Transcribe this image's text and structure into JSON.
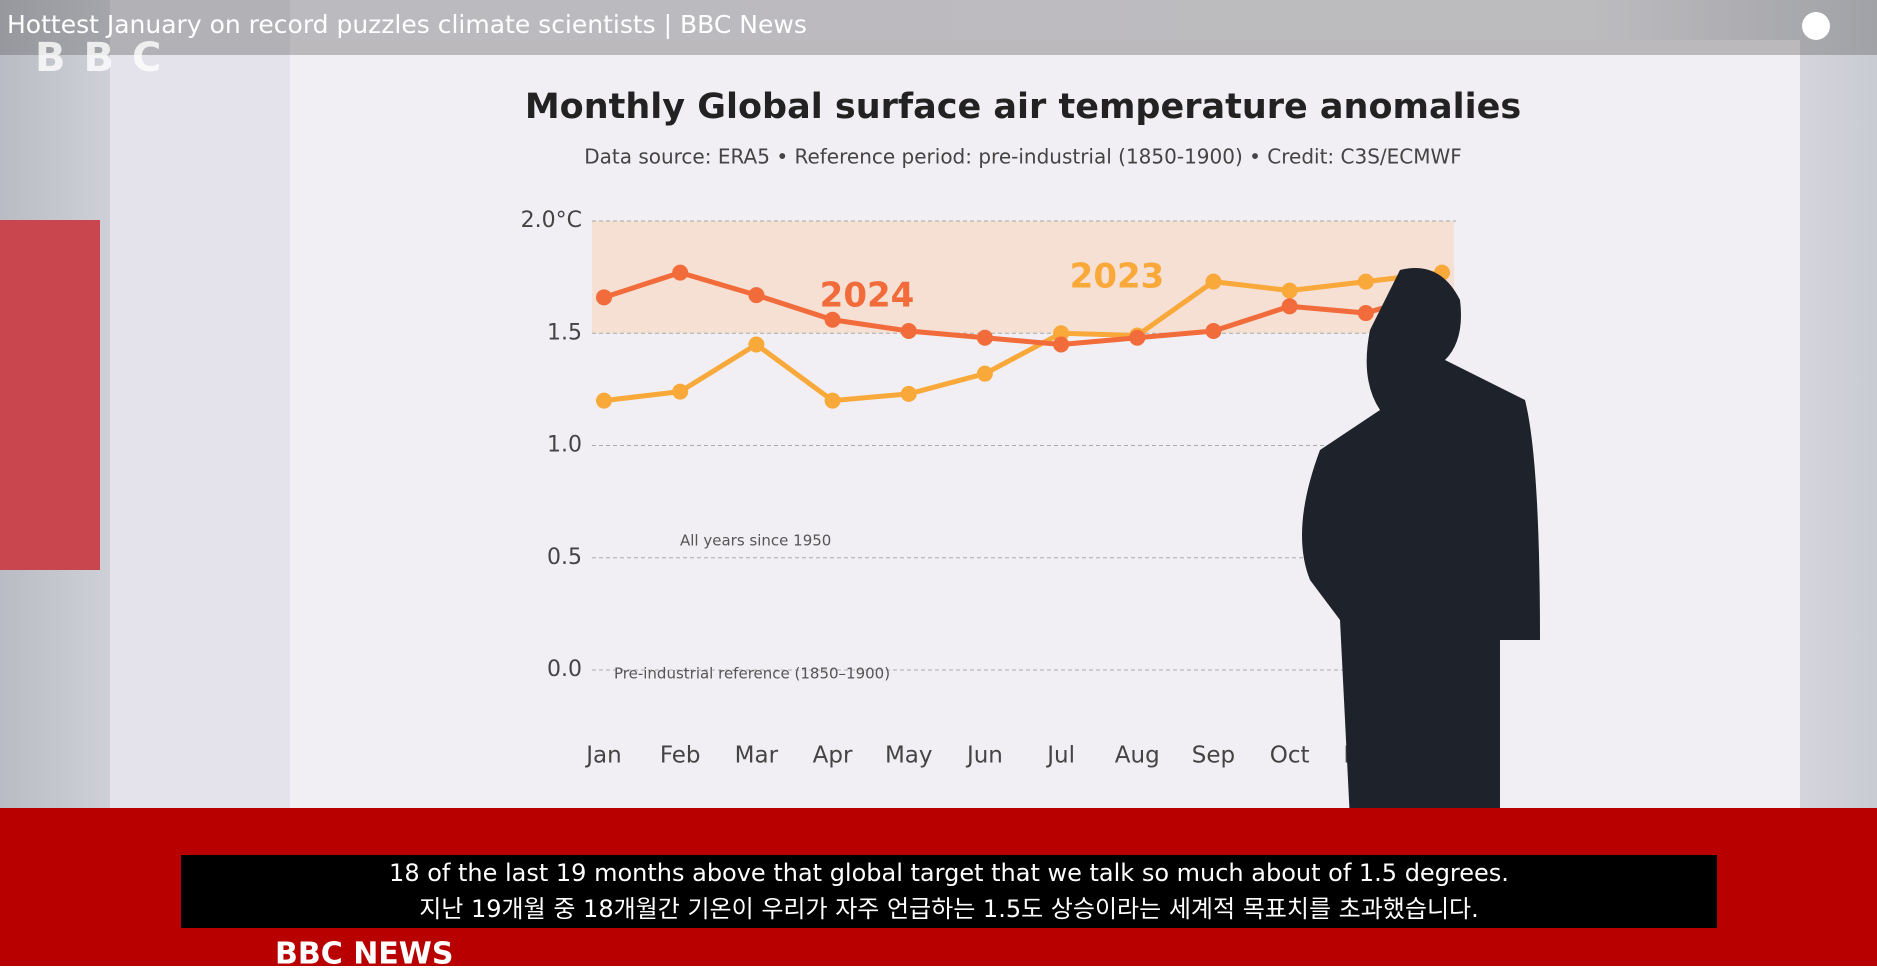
{
  "video_title": "Hottest January on record puzzles climate scientists | BBC News",
  "logo": "BBC",
  "footer_logo": "BBC NEWS",
  "captions": [
    "18 of the last 19 months above that global target that we talk so much about of 1.5 degrees.",
    "지난 19개월 중 18개월간 기온이 우리가 자주 언급하는 1.5도 상승이라는 세계적 목표치를 초과했습니다."
  ],
  "chart_data": {
    "type": "line",
    "title": "Monthly Global surface air temperature anomalies",
    "subtitle": "Data source: ERA5 • Reference period: pre-industrial (1850-1900) • Credit: C3S/ECMWF",
    "categories": [
      "Jan",
      "Feb",
      "Mar",
      "Apr",
      "May",
      "Jun",
      "Jul",
      "Aug",
      "Sep",
      "Oct",
      "Nov",
      null
    ],
    "series": [
      {
        "name": "2024",
        "color": "#f26b3a",
        "values": [
          1.66,
          1.77,
          1.67,
          1.56,
          1.51,
          1.48,
          1.45,
          1.48,
          1.51,
          1.62,
          1.59,
          1.69
        ]
      },
      {
        "name": "2023",
        "color": "#f9a83a",
        "values": [
          1.2,
          1.24,
          1.45,
          1.2,
          1.23,
          1.32,
          1.5,
          1.49,
          1.73,
          1.69,
          1.73,
          1.77
        ]
      }
    ],
    "annotations": [
      "All years since 1950",
      "Pre-industrial reference (1850–1900)"
    ],
    "ylim": [
      0,
      2
    ],
    "yticks": [
      {
        "value": 0,
        "label": "0.0"
      },
      0.5,
      {
        "value": 1,
        "label": "1.0"
      },
      1.5,
      {
        "value": 2,
        "label": "2.0°C"
      }
    ],
    "grid": true
  }
}
